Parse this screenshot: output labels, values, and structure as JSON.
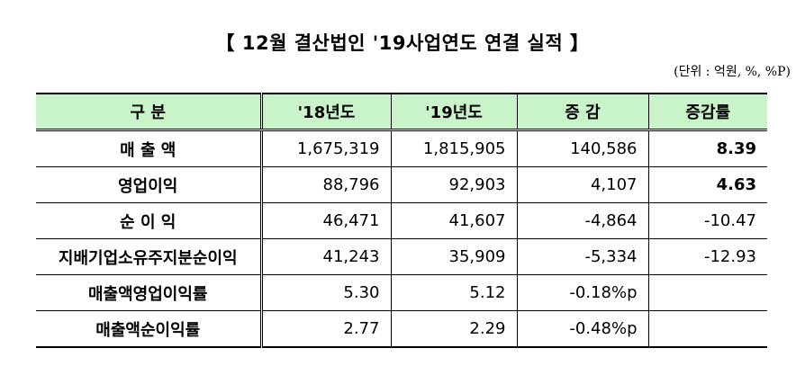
{
  "title": "【 12월 결산법인 '19사업연도 연결 실적 】",
  "unit": "(단위 : 억원, %, %P)",
  "table": {
    "headers": [
      "구    분",
      "'18년도",
      "'19년도",
      "증  감",
      "증감률"
    ],
    "rows": [
      {
        "label": "매 출 액",
        "y18": "1,675,319",
        "y19": "1,815,905",
        "diff": "140,586",
        "rate": "8.39",
        "rate_bold": true
      },
      {
        "label": "영업이익",
        "y18": "88,796",
        "y19": "92,903",
        "diff": "4,107",
        "rate": "4.63",
        "rate_bold": true
      },
      {
        "label": "순 이 익",
        "y18": "46,471",
        "y19": "41,607",
        "diff": "-4,864",
        "rate": "-10.47",
        "rate_bold": false
      },
      {
        "label": "지배기업소유주지분순이익",
        "y18": "41,243",
        "y19": "35,909",
        "diff": "-5,334",
        "rate": "-12.93",
        "rate_bold": false
      },
      {
        "label": "매출액영업이익률",
        "y18": "5.30",
        "y19": "5.12",
        "diff": "-0.18%p",
        "rate": "",
        "rate_bold": false
      },
      {
        "label": "매출액순이익률",
        "y18": "2.77",
        "y19": "2.29",
        "diff": "-0.48%p",
        "rate": "",
        "rate_bold": false
      }
    ]
  }
}
